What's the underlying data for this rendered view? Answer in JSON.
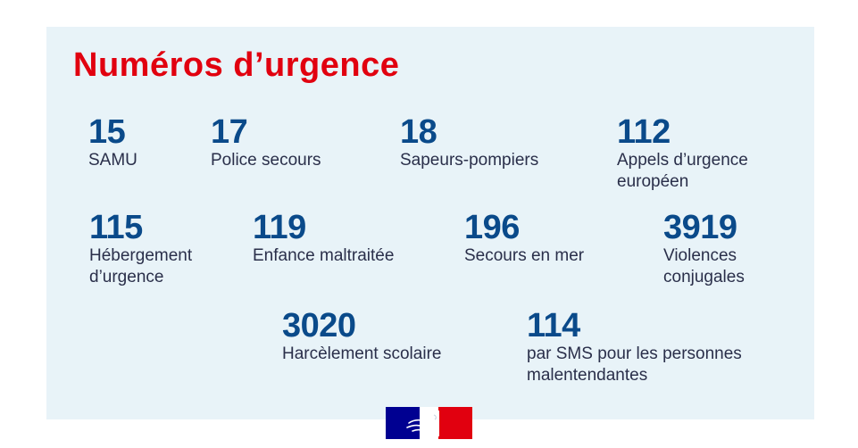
{
  "title": "Numéros d’urgence",
  "colors": {
    "accent": "#e1000f",
    "number": "#0a4a8a",
    "panel": "#e8f3f8",
    "text": "#2a2f4a"
  },
  "numbers": [
    {
      "number": "15",
      "label": "SAMU"
    },
    {
      "number": "17",
      "label": "Police secours"
    },
    {
      "number": "18",
      "label": "Sapeurs-pompiers"
    },
    {
      "number": "112",
      "label": "Appels d’urgence\neuropéen"
    },
    {
      "number": "115",
      "label": "Hébergement\nd’urgence"
    },
    {
      "number": "119",
      "label": "Enfance maltraitée"
    },
    {
      "number": "196",
      "label": "Secours en mer"
    },
    {
      "number": "3919",
      "label": "Violences\nconjugales"
    },
    {
      "number": "3020",
      "label": "Harcèlement scolaire"
    },
    {
      "number": "114",
      "label": "par SMS pour les personnes\nmalentendantes"
    }
  ],
  "logo": "republique-francaise-marianne-logo"
}
